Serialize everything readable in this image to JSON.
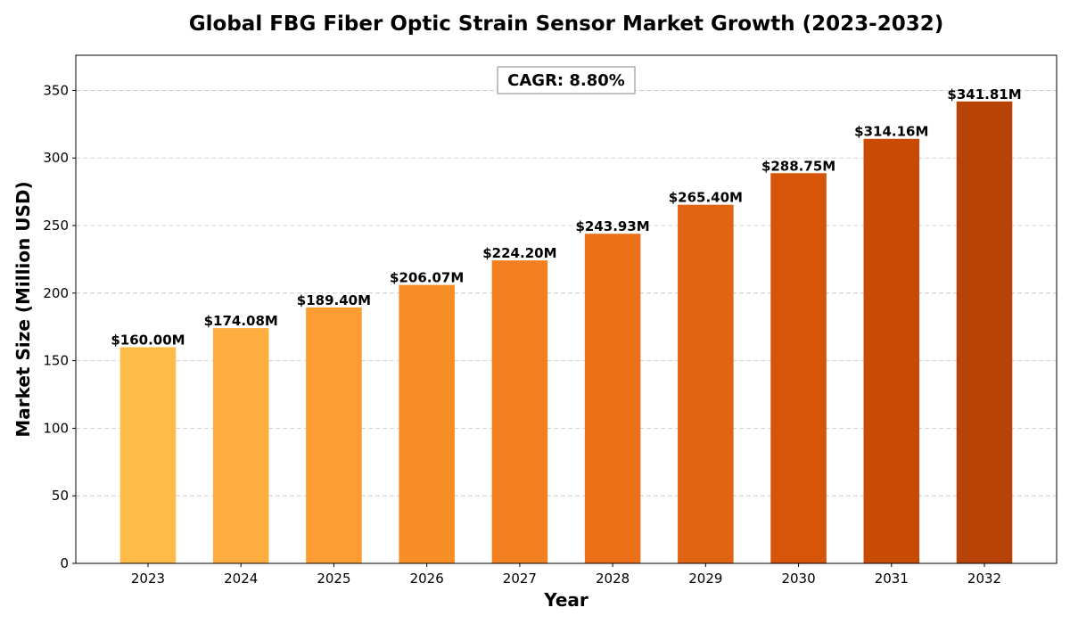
{
  "chart_data": {
    "type": "bar",
    "title": "Global FBG Fiber Optic Strain Sensor Market Growth (2023-2032)",
    "xlabel": "Year",
    "ylabel": "Market Size (Million USD)",
    "categories": [
      "2023",
      "2024",
      "2025",
      "2026",
      "2027",
      "2028",
      "2029",
      "2030",
      "2031",
      "2032"
    ],
    "values": [
      160.0,
      174.08,
      189.4,
      206.07,
      224.2,
      243.93,
      265.4,
      288.75,
      314.16,
      341.81
    ],
    "data_labels": [
      "$160.00M",
      "$174.08M",
      "$189.40M",
      "$206.07M",
      "$224.20M",
      "$243.93M",
      "$265.40M",
      "$288.75M",
      "$314.16M",
      "$341.81M"
    ],
    "bar_colors": [
      "#FFBB48",
      "#FEAD3E",
      "#FD9C30",
      "#F78F26",
      "#F28020",
      "#EB7017",
      "#E06411",
      "#D65508",
      "#C94A02",
      "#B84306"
    ],
    "ylim": [
      0,
      376
    ],
    "yticks": [
      0,
      50,
      100,
      150,
      200,
      250,
      300,
      350
    ],
    "grid": true,
    "grid_axis": "y",
    "annotation": "CAGR: 8.80%"
  }
}
